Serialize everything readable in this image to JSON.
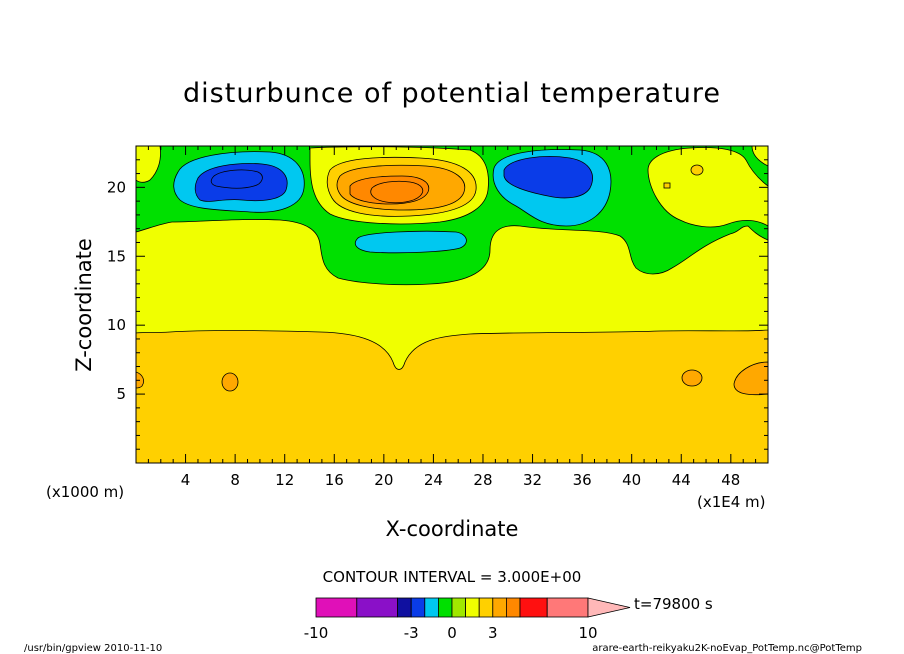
{
  "chart_data": {
    "type": "heatmap",
    "title": "disturbunce of potential temperature",
    "xlabel": "X-coordinate",
    "ylabel": "Z-coordinate",
    "x_unit_note": "(x1000 m)",
    "x_scale_note": "(x1E4 m)",
    "xlim": [
      0,
      51
    ],
    "ylim": [
      0,
      23
    ],
    "xticks": [
      4,
      8,
      12,
      16,
      20,
      24,
      28,
      32,
      36,
      40,
      44,
      48
    ],
    "yticks": [
      5,
      10,
      15,
      20
    ],
    "contour_interval_text": "CONTOUR INTERVAL = 3.000E+00",
    "time_label": "t=79800 s",
    "colorbar": {
      "levels": [
        -10,
        -7,
        -4,
        -3,
        -2,
        -1,
        0,
        1,
        2,
        3,
        4,
        5,
        7,
        10
      ],
      "tick_labels": [
        "-10",
        "-3",
        "0",
        "3",
        "10"
      ],
      "tick_values": [
        -10,
        -3,
        0,
        3,
        10
      ],
      "colors": [
        "#e010b8",
        "#8a10c8",
        "#1010a0",
        "#0a3ce8",
        "#00c8f0",
        "#00e000",
        "#a0e800",
        "#f0ff00",
        "#ffd000",
        "#ffa800",
        "#ff8800",
        "#ff1010",
        "#ff7878"
      ],
      "overflow_color": "#ffb8b8"
    },
    "regions_note": "Z<9: +2 to +3 (orange-yellow); 9-15: 0 to +1 (yellow); 15-23: -1 to 0 (green) with cyan/blue minima near x=6, 32 and a warm maximum near x=21, z=19.5"
  },
  "footer": {
    "left": "/usr/bin/gpview   2010-11-10",
    "right": "arare-earth-reikyaku2K-noEvap_PotTemp.nc@PotTemp"
  }
}
